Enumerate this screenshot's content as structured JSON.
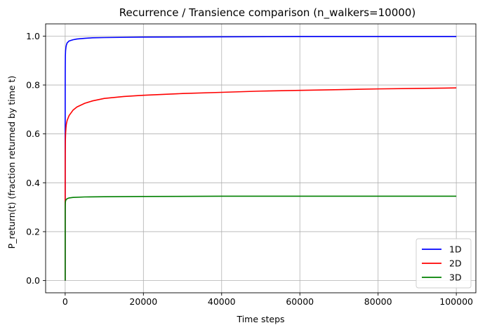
{
  "chart_data": {
    "type": "line",
    "title": "Recurrence / Transience comparison (n_walkers=10000)",
    "xlabel": "Time steps",
    "ylabel": "P_return(t) (fraction returned by time t)",
    "xlim": [
      -5000,
      105000
    ],
    "ylim": [
      -0.05,
      1.05
    ],
    "x_ticks": [
      0,
      20000,
      40000,
      60000,
      80000,
      100000
    ],
    "y_ticks": [
      0.0,
      0.2,
      0.4,
      0.6,
      0.8,
      1.0
    ],
    "x_tick_labels": [
      "0",
      "20000",
      "40000",
      "60000",
      "80000",
      "100000"
    ],
    "y_tick_labels": [
      "0.0",
      "0.2",
      "0.4",
      "0.6",
      "0.8",
      "1.0"
    ],
    "grid": true,
    "legend_position": "bottom-right",
    "series": [
      {
        "name": "1D",
        "color": "#0000ff",
        "x": [
          0,
          1,
          2,
          5,
          10,
          20,
          50,
          100,
          200,
          300,
          500,
          1000,
          2000,
          3000,
          5000,
          7000,
          10000,
          20000,
          40000,
          60000,
          80000,
          100000
        ],
        "y": [
          0.0,
          0.5,
          0.62,
          0.75,
          0.82,
          0.87,
          0.92,
          0.94,
          0.955,
          0.963,
          0.972,
          0.98,
          0.985,
          0.988,
          0.991,
          0.993,
          0.994,
          0.996,
          0.997,
          0.998,
          0.998,
          0.998
        ]
      },
      {
        "name": "2D",
        "color": "#ff0000",
        "x": [
          0,
          1,
          2,
          5,
          10,
          20,
          50,
          100,
          200,
          300,
          500,
          1000,
          2000,
          3000,
          5000,
          7000,
          10000,
          15000,
          20000,
          30000,
          40000,
          50000,
          60000,
          70000,
          80000,
          90000,
          100000
        ],
        "y": [
          0.0,
          0.25,
          0.34,
          0.42,
          0.47,
          0.52,
          0.57,
          0.6,
          0.625,
          0.64,
          0.655,
          0.675,
          0.697,
          0.71,
          0.725,
          0.735,
          0.745,
          0.753,
          0.758,
          0.765,
          0.77,
          0.775,
          0.778,
          0.781,
          0.784,
          0.786,
          0.788
        ]
      },
      {
        "name": "3D",
        "color": "#008000",
        "x": [
          0,
          1,
          2,
          5,
          10,
          20,
          50,
          100,
          200,
          500,
          1000,
          2000,
          5000,
          10000,
          20000,
          40000,
          60000,
          80000,
          100000
        ],
        "y": [
          0.0,
          0.17,
          0.24,
          0.28,
          0.3,
          0.31,
          0.32,
          0.325,
          0.33,
          0.335,
          0.338,
          0.34,
          0.342,
          0.343,
          0.344,
          0.345,
          0.345,
          0.345,
          0.345
        ]
      }
    ]
  }
}
